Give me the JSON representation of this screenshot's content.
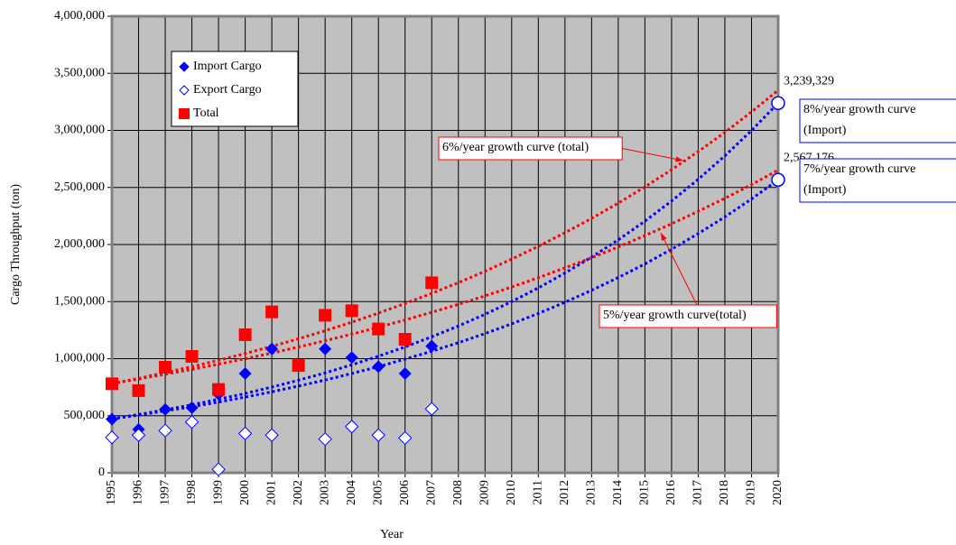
{
  "chart_data": {
    "type": "line",
    "x_label": "Year",
    "y_label": "Cargo Throughput (ton)",
    "x": [
      1995,
      1996,
      1997,
      1998,
      1999,
      2000,
      2001,
      2002,
      2003,
      2004,
      2005,
      2006,
      2007,
      2008,
      2009,
      2010,
      2011,
      2012,
      2013,
      2014,
      2015,
      2016,
      2017,
      2018,
      2019,
      2020
    ],
    "xlim": [
      1995,
      2020
    ],
    "xticks": [
      1995,
      1996,
      1997,
      1998,
      1999,
      2000,
      2001,
      2002,
      2003,
      2004,
      2005,
      2006,
      2007,
      2008,
      2009,
      2010,
      2011,
      2012,
      2013,
      2014,
      2015,
      2016,
      2017,
      2018,
      2019,
      2020
    ],
    "ylim": [
      0,
      4000000
    ],
    "yticks": [
      0,
      {
        "value": 500000,
        "label": "500,000"
      },
      {
        "value": 1000000,
        "label": "1,000,000"
      },
      {
        "value": 1500000,
        "label": "1,500,000"
      },
      {
        "value": 2000000,
        "label": "2,000,000"
      },
      {
        "value": 2500000,
        "label": "2,500,000"
      },
      {
        "value": 3000000,
        "label": "3,000,000"
      },
      {
        "value": 3500000,
        "label": "3,500,000"
      },
      {
        "value": 4000000,
        "label": "4,000,000"
      }
    ],
    "grid": true,
    "legend": "upper left",
    "series": [
      {
        "name": "Import Cargo",
        "color": "#0000ff",
        "marker": "diamond",
        "values": [
          470000,
          380000,
          555000,
          570000,
          690000,
          870000,
          1085000,
          null,
          1085000,
          1010000,
          930000,
          870000,
          1110000,
          null,
          null,
          null,
          null,
          null,
          null,
          null,
          null,
          null,
          null,
          null,
          null,
          null
        ]
      },
      {
        "name": "Export Cargo",
        "color": "#0000ff",
        "marker": "diamond-open",
        "values": [
          310000,
          330000,
          370000,
          445000,
          30000,
          345000,
          330000,
          null,
          295000,
          405000,
          330000,
          305000,
          560000,
          null,
          null,
          null,
          null,
          null,
          null,
          null,
          null,
          null,
          null,
          null,
          null,
          null
        ]
      },
      {
        "name": "Total",
        "color": "#ff0000",
        "marker": "square",
        "values": [
          780000,
          720000,
          925000,
          1020000,
          730000,
          1210000,
          1410000,
          940000,
          1380000,
          1420000,
          1260000,
          1170000,
          1665000,
          null,
          null,
          null,
          null,
          null,
          null,
          null,
          null,
          null,
          null,
          null,
          null,
          null
        ]
      }
    ],
    "trends": [
      {
        "label": [
          "8%/year growth curve",
          "(Import)"
        ],
        "color": "#0000ff",
        "values": [
          473000,
          511000,
          552000,
          596000,
          644000,
          695000,
          751000,
          811000,
          875000,
          946000,
          1021000,
          1103000,
          1191000,
          1286000,
          1389000,
          1500000,
          1620000,
          1750000,
          1890000,
          2041000,
          2205000,
          2381000,
          2571000,
          2777000,
          2999000,
          3239329
        ],
        "value_labels": [
          null,
          null,
          null,
          null,
          null,
          null,
          null,
          null,
          null,
          null,
          null,
          null,
          null,
          null,
          null,
          null,
          null,
          null,
          null,
          null,
          null,
          null,
          null,
          null,
          null,
          "3,239,329"
        ]
      },
      {
        "label": [
          "7%/year growth curve",
          "(Import)"
        ],
        "color": "#0000ff",
        "values": [
          473000,
          506000,
          542000,
          579000,
          620000,
          663000,
          710000,
          760000,
          813000,
          870000,
          930000,
          996000,
          1065000,
          1140000,
          1220000,
          1305000,
          1396000,
          1494000,
          1599000,
          1711000,
          1830000,
          1958000,
          2096000,
          2242000,
          2399000,
          2567176
        ],
        "value_labels": [
          null,
          null,
          null,
          null,
          null,
          null,
          null,
          null,
          null,
          null,
          null,
          null,
          null,
          null,
          null,
          null,
          null,
          null,
          null,
          null,
          null,
          null,
          null,
          null,
          null,
          "2,567,176"
        ]
      },
      {
        "label": [
          "6%/year growth curve (total)"
        ],
        "color": "#ff0000",
        "values": [
          781000,
          828000,
          878000,
          930000,
          986000,
          1045000,
          1108000,
          1174000,
          1245000,
          1319000,
          1399000,
          1483000,
          1572000,
          1666000,
          1766000,
          1872000,
          1984000,
          2103000,
          2229000,
          2363000,
          2505000,
          2655000,
          2814000,
          2983000,
          3162000,
          3352000
        ]
      },
      {
        "label": [
          "5%/year growth curve(total)"
        ],
        "color": "#ff0000",
        "values": [
          783000,
          822000,
          863000,
          906000,
          952000,
          999000,
          1049000,
          1102000,
          1157000,
          1215000,
          1275000,
          1339000,
          1406000,
          1476000,
          1550000,
          1628000,
          1709000,
          1795000,
          1884000,
          1979000,
          2078000,
          2181000,
          2291000,
          2405000,
          2525000,
          2652000
        ]
      }
    ]
  }
}
